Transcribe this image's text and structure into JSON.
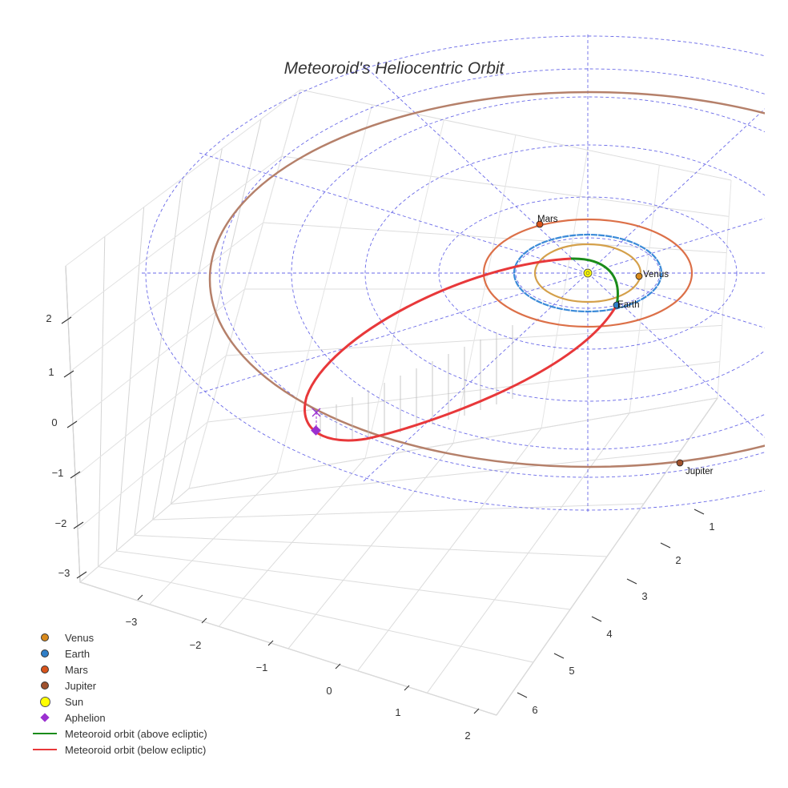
{
  "chart_data": {
    "type": "scatter",
    "title": "Meteoroid's Heliocentric Orbit",
    "axes": {
      "x_ticks": [
        "−3",
        "−2",
        "−1",
        "0",
        "1",
        "2"
      ],
      "y_ticks": [
        "1",
        "2",
        "3",
        "4",
        "5",
        "6"
      ],
      "z_ticks": [
        "2",
        "1",
        "0",
        "−1",
        "−2",
        "−3"
      ],
      "grid": true
    },
    "bodies": [
      {
        "name": "Venus",
        "label": "Venus",
        "orbit_radius_au": 0.72,
        "color": "#d98a1c",
        "orbit_color": "#d4a04a"
      },
      {
        "name": "Earth",
        "label": "Earth",
        "orbit_radius_au": 1.0,
        "color": "#2f7fc8",
        "orbit_color": "#3a8ad8"
      },
      {
        "name": "Mars",
        "label": "Mars",
        "orbit_radius_au": 1.52,
        "color": "#d9541c",
        "orbit_color": "#dc7048"
      },
      {
        "name": "Jupiter",
        "label": "Jupiter",
        "orbit_radius_au": 5.2,
        "color": "#a0522d",
        "orbit_color": "#b5806a"
      }
    ],
    "sun": {
      "name": "Sun",
      "color": "#ffff00"
    },
    "aphelion": {
      "name": "Aphelion",
      "color": "#9b30d0"
    },
    "meteoroid": {
      "above_name": "Meteoroid orbit (above ecliptic)",
      "above_color": "#1a8c1a",
      "below_name": "Meteoroid orbit (below ecliptic)",
      "below_color": "#e8383a"
    }
  },
  "legend": [
    {
      "label": "Venus",
      "kind": "dot",
      "color": "#d98a1c"
    },
    {
      "label": "Earth",
      "kind": "dot",
      "color": "#2f7fc8"
    },
    {
      "label": "Mars",
      "kind": "dot",
      "color": "#d9541c"
    },
    {
      "label": "Jupiter",
      "kind": "dot",
      "color": "#a0522d"
    },
    {
      "label": "Sun",
      "kind": "bigdot",
      "color": "#ffff00"
    },
    {
      "label": "Aphelion",
      "kind": "diamond",
      "color": "#9b30d0"
    },
    {
      "label": "Meteoroid orbit (above ecliptic)",
      "kind": "line",
      "color": "#1a8c1a"
    },
    {
      "label": "Meteoroid orbit (below ecliptic)",
      "kind": "line",
      "color": "#e8383a"
    }
  ]
}
